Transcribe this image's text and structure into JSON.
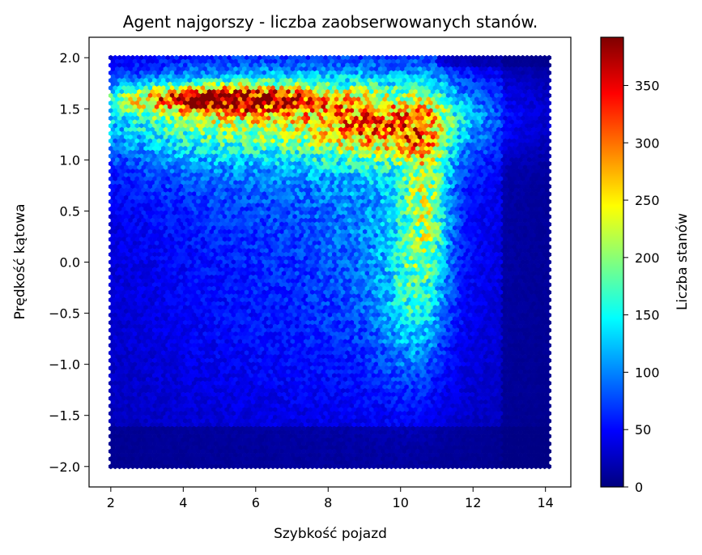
{
  "chart_data": {
    "type": "heatmap",
    "subtype": "hexbin",
    "title": "Agent najgorszy - liczba zaobserwowanych stanów.",
    "xlabel": "Szybkość pojazd",
    "ylabel": "Prędkość kątowa",
    "xlim": [
      1.4,
      14.7
    ],
    "ylim": [
      -2.2,
      2.2
    ],
    "x_range": [
      2.0,
      14.1
    ],
    "y_range": [
      -2.0,
      2.0
    ],
    "xticks": [
      2,
      4,
      6,
      8,
      10,
      12,
      14
    ],
    "xtick_labels": [
      "2",
      "4",
      "6",
      "8",
      "10",
      "12",
      "14"
    ],
    "yticks": [
      2.0,
      1.5,
      1.0,
      0.5,
      0.0,
      -0.5,
      -1.0,
      -1.5,
      -2.0
    ],
    "ytick_labels": [
      "2.0",
      "1.5",
      "1.0",
      "0.5",
      "0.0",
      "−0.5",
      "−1.0",
      "−1.5",
      "−2.0"
    ],
    "colormap": "jet",
    "colorbar": {
      "label": "Liczba stanów",
      "min": 0,
      "max": 392,
      "ticks": [
        0,
        50,
        100,
        150,
        200,
        250,
        300,
        350
      ],
      "tick_labels": [
        "0",
        "50",
        "100",
        "150",
        "200",
        "250",
        "300",
        "350"
      ]
    },
    "density_features": [
      {
        "x": 5.0,
        "y": 1.6,
        "peak_count": 380
      },
      {
        "x": 9.5,
        "y": 1.3,
        "peak_count": 240
      },
      {
        "x": 10.8,
        "y": 0.9,
        "peak_count": 230
      },
      {
        "x": 10.5,
        "y": 0.0,
        "peak_count": 150
      },
      {
        "x": 8.0,
        "y": -1.8,
        "peak_count": 10
      }
    ],
    "grid": false,
    "legend": "none"
  }
}
